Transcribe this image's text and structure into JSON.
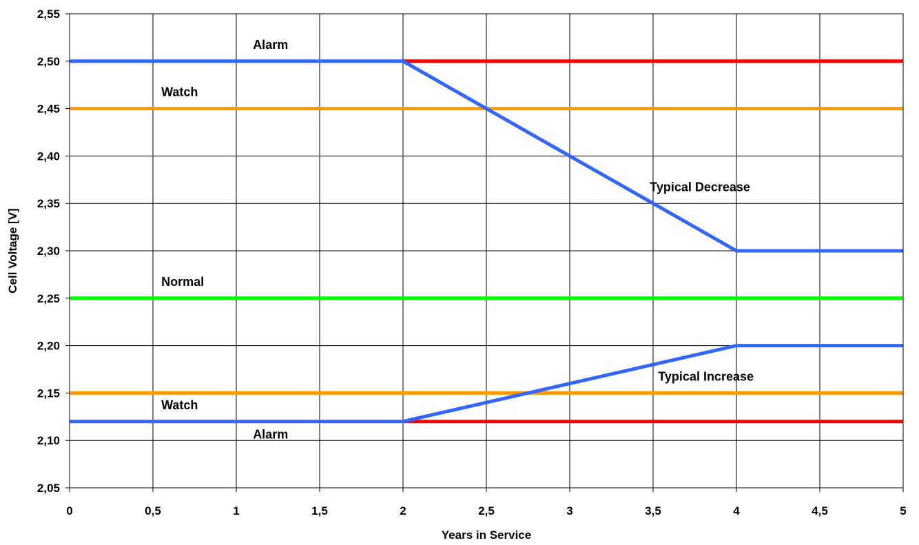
{
  "chart_data": {
    "type": "line",
    "xlabel": "Years in Service",
    "ylabel": "Cell Voltage [V]",
    "xlim": [
      0,
      5
    ],
    "ylim": [
      2.05,
      2.55
    ],
    "grid": true,
    "x_ticks": [
      "0",
      "0,5",
      "1",
      "1,5",
      "2",
      "2,5",
      "3",
      "3,5",
      "4",
      "4,5",
      "5"
    ],
    "y_ticks": [
      "2,05",
      "2,10",
      "2,15",
      "2,20",
      "2,25",
      "2,30",
      "2,35",
      "2,40",
      "2,45",
      "2,50",
      "2,55"
    ],
    "series": [
      {
        "color": "#ff0000",
        "points": [
          [
            2,
            2.5
          ],
          [
            5,
            2.5
          ]
        ]
      },
      {
        "color": "#ff9900",
        "points": [
          [
            0,
            2.45
          ],
          [
            5,
            2.45
          ]
        ]
      },
      {
        "color": "#00ff00",
        "points": [
          [
            0,
            2.25
          ],
          [
            5,
            2.25
          ]
        ]
      },
      {
        "color": "#ff9900",
        "points": [
          [
            0,
            2.15
          ],
          [
            5,
            2.15
          ]
        ]
      },
      {
        "color": "#ff0000",
        "points": [
          [
            2,
            2.12
          ],
          [
            5,
            2.12
          ]
        ]
      },
      {
        "color": "#3366ff",
        "points": [
          [
            0,
            2.5
          ],
          [
            2,
            2.5
          ],
          [
            4,
            2.3
          ],
          [
            5,
            2.3
          ]
        ]
      },
      {
        "color": "#3366ff",
        "points": [
          [
            0,
            2.12
          ],
          [
            2,
            2.12
          ],
          [
            4,
            2.2
          ],
          [
            5,
            2.2
          ]
        ]
      }
    ],
    "annotations": [
      {
        "text": "Alarm",
        "x": 1.1,
        "y": 2.513
      },
      {
        "text": "Watch",
        "x": 0.55,
        "y": 2.463
      },
      {
        "text": "Typical Decrease",
        "x": 3.48,
        "y": 2.363
      },
      {
        "text": "Normal",
        "x": 0.55,
        "y": 2.263
      },
      {
        "text": "Typical Increase",
        "x": 3.53,
        "y": 2.163
      },
      {
        "text": "Watch",
        "x": 0.55,
        "y": 2.133
      },
      {
        "text": "Alarm",
        "x": 1.1,
        "y": 2.102
      }
    ]
  }
}
